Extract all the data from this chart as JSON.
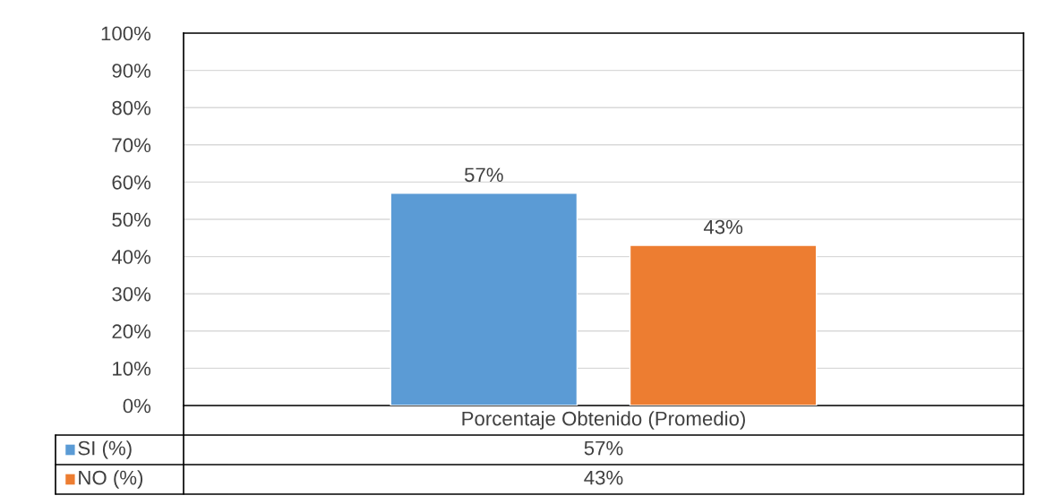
{
  "chart_data": {
    "type": "bar",
    "categories": [
      "Porcentaje Obtenido (Promedio)"
    ],
    "series": [
      {
        "name": "SI (%)",
        "color": "#5b9bd5",
        "values": [
          57
        ],
        "value_labels": [
          "57%"
        ]
      },
      {
        "name": "NO (%)",
        "color": "#ed7d31",
        "values": [
          43
        ],
        "value_labels": [
          "43%"
        ]
      }
    ],
    "ylim": [
      0,
      100
    ],
    "yticks": [
      {
        "value": 0,
        "label": "0%"
      },
      {
        "value": 10,
        "label": "10%"
      },
      {
        "value": 20,
        "label": "20%"
      },
      {
        "value": 30,
        "label": "30%"
      },
      {
        "value": 40,
        "label": "40%"
      },
      {
        "value": 50,
        "label": "50%"
      },
      {
        "value": 60,
        "label": "60%"
      },
      {
        "value": 70,
        "label": "70%"
      },
      {
        "value": 80,
        "label": "80%"
      },
      {
        "value": 90,
        "label": "90%"
      },
      {
        "value": 100,
        "label": "100%"
      }
    ],
    "grid": "y",
    "legend": "bottom"
  }
}
